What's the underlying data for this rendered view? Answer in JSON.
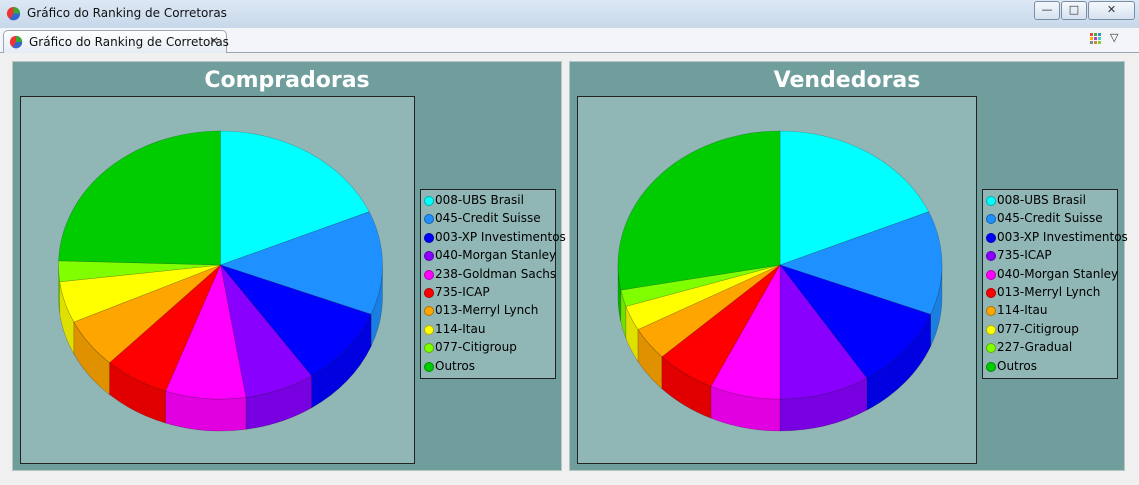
{
  "window": {
    "title": "Gráfico do Ranking de Corretoras",
    "minimize": "—",
    "maximize": "□",
    "close": "✕"
  },
  "tab": {
    "label": "Gráfico do Ranking de Corretoras",
    "close": "✕"
  },
  "view_menu": {
    "dropdown": "▽"
  },
  "chart_data": [
    {
      "type": "pie",
      "title": "Compradoras",
      "categories": [
        "008-UBS Brasil",
        "045-Credit Suisse",
        "003-XP Investimentos",
        "040-Morgan Stanley",
        "238-Goldman Sachs",
        "735-ICAP",
        "013-Merryl Lynch",
        "114-Itau",
        "077-Citigroup",
        "Outros"
      ],
      "values": [
        18.5,
        12.5,
        9.5,
        7.0,
        8.0,
        6.5,
        6.0,
        5.0,
        2.5,
        24.5
      ],
      "colors": [
        "#00ffff",
        "#1e90ff",
        "#0000ff",
        "#8a00ff",
        "#ff00ff",
        "#ff0000",
        "#ffa500",
        "#ffff00",
        "#80ff00",
        "#00cc00"
      ],
      "legend": "right"
    },
    {
      "type": "pie",
      "title": "Vendedoras",
      "categories": [
        "008-UBS Brasil",
        "045-Credit Suisse",
        "003-XP Investimentos",
        "735-ICAP",
        "040-Morgan Stanley",
        "013-Merryl Lynch",
        "114-Itau",
        "077-Citigroup",
        "227-Gradual",
        "Outros"
      ],
      "values": [
        18.5,
        12.5,
        10.0,
        9.0,
        7.0,
        6.0,
        4.0,
        3.0,
        2.0,
        28.0
      ],
      "colors": [
        "#00ffff",
        "#1e90ff",
        "#0000ff",
        "#8a00ff",
        "#ff00ff",
        "#ff0000",
        "#ffa500",
        "#ffff00",
        "#80ff00",
        "#00cc00"
      ],
      "legend": "right"
    }
  ]
}
